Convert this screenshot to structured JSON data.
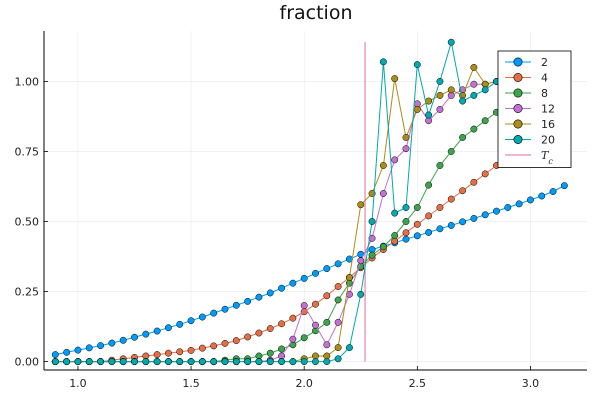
{
  "chart_data": {
    "type": "line",
    "title": "fraction",
    "xlabel": "",
    "ylabel": "",
    "xlim": [
      0.85,
      3.25
    ],
    "ylim": [
      -0.03,
      1.18
    ],
    "xticks": [
      1.0,
      1.5,
      2.0,
      2.5,
      3.0
    ],
    "xtick_labels": [
      "1.0",
      "1.5",
      "2.0",
      "2.5",
      "3.0"
    ],
    "yticks": [
      0.0,
      0.25,
      0.5,
      0.75,
      1.0
    ],
    "ytick_labels": [
      "0.00",
      "0.25",
      "0.50",
      "0.75",
      "1.00"
    ],
    "grid": true,
    "legend_position": "top-right",
    "vline": {
      "x": 2.269,
      "y_range": [
        0.0,
        1.14
      ],
      "color": "#e26f93",
      "label": "T_c"
    },
    "series": [
      {
        "name": "2",
        "color": "#009af9",
        "x": [
          0.9,
          0.95,
          1.0,
          1.05,
          1.1,
          1.15,
          1.2,
          1.25,
          1.3,
          1.35,
          1.4,
          1.45,
          1.5,
          1.55,
          1.6,
          1.65,
          1.7,
          1.75,
          1.8,
          1.85,
          1.9,
          1.95,
          2.0,
          2.05,
          2.1,
          2.15,
          2.2,
          2.25,
          2.3,
          2.35,
          2.4,
          2.45,
          2.5,
          2.55,
          2.6,
          2.65,
          2.7,
          2.75,
          2.8,
          2.85,
          2.9,
          2.95,
          3.0,
          3.05,
          3.1,
          3.15
        ],
        "y": [
          0.025,
          0.033,
          0.041,
          0.049,
          0.057,
          0.066,
          0.076,
          0.087,
          0.098,
          0.109,
          0.121,
          0.133,
          0.146,
          0.159,
          0.173,
          0.187,
          0.201,
          0.215,
          0.23,
          0.245,
          0.262,
          0.28,
          0.297,
          0.315,
          0.332,
          0.349,
          0.366,
          0.383,
          0.4,
          0.412,
          0.424,
          0.437,
          0.449,
          0.461,
          0.474,
          0.486,
          0.499,
          0.511,
          0.524,
          0.537,
          0.55,
          0.563,
          0.577,
          0.591,
          0.607,
          0.628
        ]
      },
      {
        "name": "4",
        "color": "#e26f46",
        "x": [
          0.9,
          0.95,
          1.0,
          1.05,
          1.1,
          1.15,
          1.2,
          1.25,
          1.3,
          1.35,
          1.4,
          1.45,
          1.5,
          1.55,
          1.6,
          1.65,
          1.7,
          1.75,
          1.8,
          1.85,
          1.9,
          1.95,
          2.0,
          2.05,
          2.1,
          2.15,
          2.2,
          2.25,
          2.3,
          2.35,
          2.4,
          2.45,
          2.5,
          2.55,
          2.6,
          2.65,
          2.7,
          2.75,
          2.8,
          2.85,
          2.9,
          2.95,
          3.0,
          3.05,
          3.1,
          3.15
        ],
        "y": [
          0.0,
          0.0,
          0.0,
          0.0,
          0.0,
          0.005,
          0.01,
          0.015,
          0.02,
          0.025,
          0.03,
          0.035,
          0.04,
          0.048,
          0.056,
          0.065,
          0.075,
          0.088,
          0.102,
          0.118,
          0.135,
          0.155,
          0.178,
          0.205,
          0.235,
          0.268,
          0.3,
          0.335,
          0.37,
          0.4,
          0.43,
          0.46,
          0.49,
          0.52,
          0.55,
          0.58,
          0.61,
          0.64,
          0.67,
          0.7,
          0.72,
          0.74,
          0.77,
          0.79,
          0.81,
          0.825
        ]
      },
      {
        "name": "8",
        "color": "#3da44d",
        "x": [
          0.9,
          0.95,
          1.0,
          1.05,
          1.1,
          1.15,
          1.2,
          1.25,
          1.3,
          1.35,
          1.4,
          1.45,
          1.5,
          1.55,
          1.6,
          1.65,
          1.7,
          1.75,
          1.8,
          1.85,
          1.9,
          1.95,
          2.0,
          2.05,
          2.1,
          2.15,
          2.2,
          2.25,
          2.3,
          2.35,
          2.4,
          2.45,
          2.5,
          2.55,
          2.6,
          2.65,
          2.7,
          2.75,
          2.8,
          2.85,
          2.9,
          2.95,
          3.0,
          3.05,
          3.1,
          3.15
        ],
        "y": [
          0.0,
          0.0,
          0.0,
          0.0,
          0.0,
          0.0,
          0.0,
          0.0,
          0.0,
          0.0,
          0.0,
          0.0,
          0.0,
          0.0,
          0.0,
          0.005,
          0.01,
          0.01,
          0.02,
          0.03,
          0.045,
          0.06,
          0.085,
          0.11,
          0.14,
          0.22,
          0.28,
          0.34,
          0.38,
          0.41,
          0.45,
          0.5,
          0.55,
          0.63,
          0.7,
          0.75,
          0.8,
          0.83,
          0.86,
          0.89,
          0.91,
          0.93,
          0.95,
          0.96,
          0.97,
          0.98
        ]
      },
      {
        "name": "12",
        "color": "#c271d2",
        "x": [
          0.9,
          0.95,
          1.0,
          1.05,
          1.1,
          1.15,
          1.2,
          1.25,
          1.3,
          1.35,
          1.4,
          1.45,
          1.5,
          1.55,
          1.6,
          1.65,
          1.7,
          1.75,
          1.8,
          1.85,
          1.9,
          1.95,
          2.0,
          2.05,
          2.1,
          2.15,
          2.2,
          2.25,
          2.3,
          2.35,
          2.4,
          2.45,
          2.5,
          2.55,
          2.6,
          2.65,
          2.7,
          2.75,
          2.8,
          2.85,
          2.9,
          2.95,
          3.0,
          3.05,
          3.1,
          3.15
        ],
        "y": [
          0.0,
          0.0,
          0.0,
          0.0,
          0.0,
          0.0,
          0.0,
          0.0,
          0.0,
          0.0,
          0.0,
          0.0,
          0.0,
          0.0,
          0.0,
          0.0,
          0.0,
          0.0,
          0.0,
          0.005,
          0.02,
          0.08,
          0.2,
          0.13,
          0.06,
          0.14,
          0.24,
          0.36,
          0.44,
          0.6,
          0.72,
          0.76,
          0.92,
          0.86,
          0.9,
          0.95,
          0.97,
          0.99,
          0.99,
          1.0,
          1.0,
          1.0,
          1.0,
          1.0,
          1.0,
          1.0
        ]
      },
      {
        "name": "16",
        "color": "#ac8d18",
        "x": [
          0.9,
          0.95,
          1.0,
          1.05,
          1.1,
          1.15,
          1.2,
          1.25,
          1.3,
          1.35,
          1.4,
          1.45,
          1.5,
          1.55,
          1.6,
          1.65,
          1.7,
          1.75,
          1.8,
          1.85,
          1.9,
          1.95,
          2.0,
          2.05,
          2.1,
          2.15,
          2.2,
          2.25,
          2.3,
          2.35,
          2.4,
          2.45,
          2.5,
          2.55,
          2.6,
          2.65,
          2.7,
          2.75,
          2.8,
          2.85,
          2.9,
          2.95,
          3.0,
          3.05,
          3.1,
          3.15
        ],
        "y": [
          0.0,
          0.0,
          0.0,
          0.0,
          0.0,
          0.0,
          0.0,
          0.0,
          0.0,
          0.0,
          0.0,
          0.0,
          0.0,
          0.0,
          0.0,
          0.0,
          0.0,
          0.0,
          0.0,
          0.0,
          0.0,
          0.0,
          0.01,
          0.02,
          0.02,
          0.05,
          0.3,
          0.56,
          0.6,
          0.7,
          1.01,
          0.8,
          0.9,
          0.93,
          0.95,
          0.97,
          0.95,
          1.05,
          0.99,
          1.0,
          1.0,
          1.0,
          1.0,
          1.0,
          1.0,
          1.0
        ]
      },
      {
        "name": "20",
        "color": "#00a9ad",
        "x": [
          0.9,
          0.95,
          1.0,
          1.05,
          1.1,
          1.15,
          1.2,
          1.25,
          1.3,
          1.35,
          1.4,
          1.45,
          1.5,
          1.55,
          1.6,
          1.65,
          1.7,
          1.75,
          1.8,
          1.85,
          1.9,
          1.95,
          2.0,
          2.05,
          2.1,
          2.15,
          2.2,
          2.25,
          2.3,
          2.35,
          2.4,
          2.45,
          2.5,
          2.55,
          2.6,
          2.65,
          2.7,
          2.75,
          2.8,
          2.85,
          2.9,
          2.95,
          3.0,
          3.05,
          3.1,
          3.15
        ],
        "y": [
          0.0,
          0.0,
          0.0,
          0.0,
          0.0,
          0.0,
          0.0,
          0.0,
          0.0,
          0.0,
          0.0,
          0.0,
          0.0,
          0.0,
          0.0,
          0.0,
          0.0,
          0.0,
          0.0,
          0.0,
          0.0,
          0.0,
          0.0,
          0.0,
          0.0,
          0.01,
          0.05,
          0.24,
          0.5,
          1.07,
          0.53,
          0.55,
          1.06,
          0.88,
          1.0,
          1.14,
          0.93,
          0.95,
          0.97,
          1.0,
          0.99,
          0.96,
          0.98,
          1.0,
          0.97,
          0.94
        ]
      }
    ]
  }
}
